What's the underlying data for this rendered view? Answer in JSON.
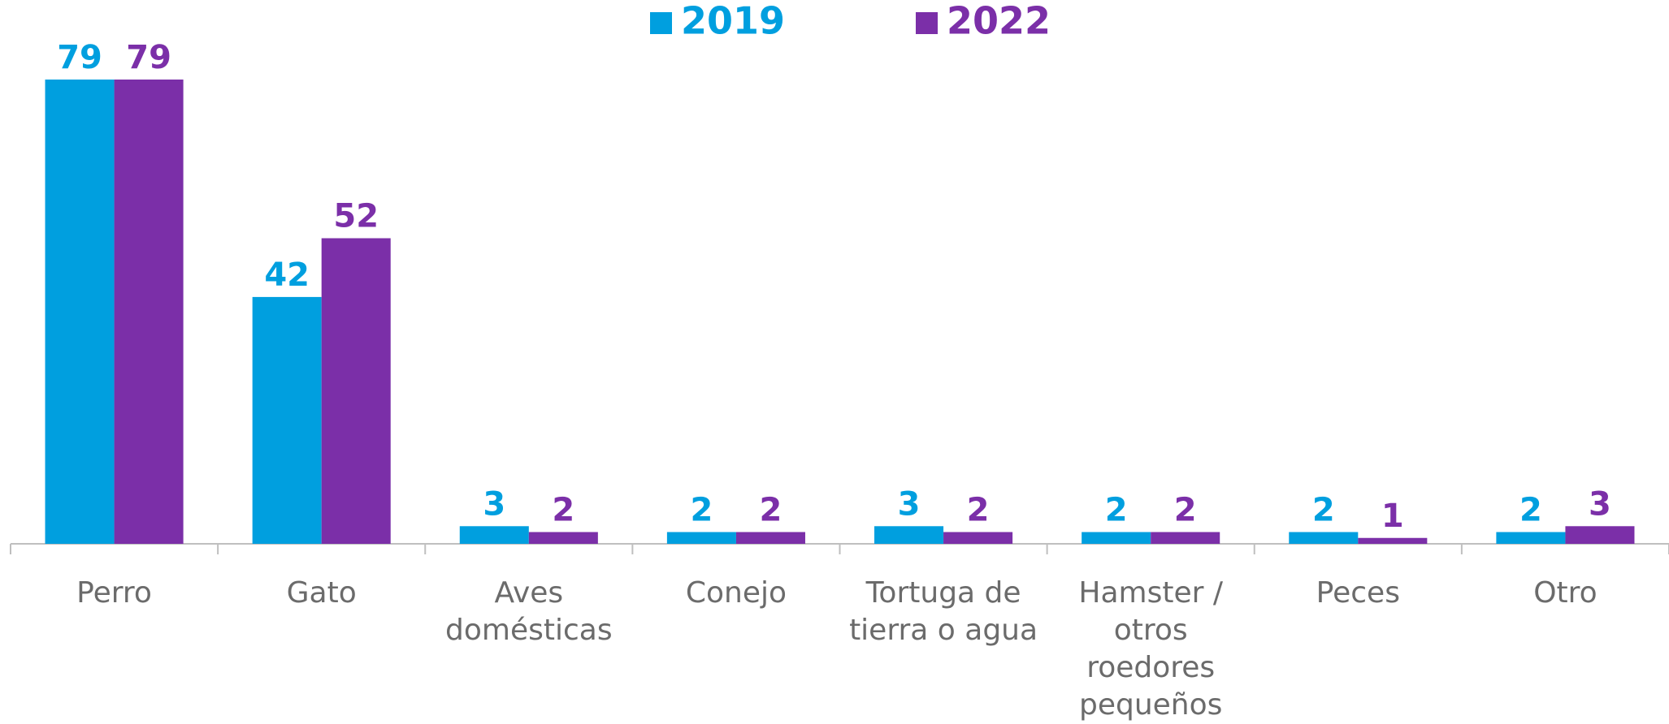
{
  "chart_data": {
    "type": "bar",
    "categories": [
      "Perro",
      "Gato",
      "Aves\ndomésticas",
      "Conejo",
      "Tortuga de\ntierra o agua",
      "Hamster /\notros\nroedores\npequeños",
      "Peces",
      "Otro"
    ],
    "series": [
      {
        "name": "2019",
        "color": "#009fdf",
        "values": [
          79,
          42,
          3,
          2,
          3,
          2,
          2,
          2
        ]
      },
      {
        "name": "2022",
        "color": "#7b2fa8",
        "values": [
          79,
          52,
          2,
          2,
          2,
          2,
          1,
          3
        ]
      }
    ],
    "legend": "top"
  }
}
